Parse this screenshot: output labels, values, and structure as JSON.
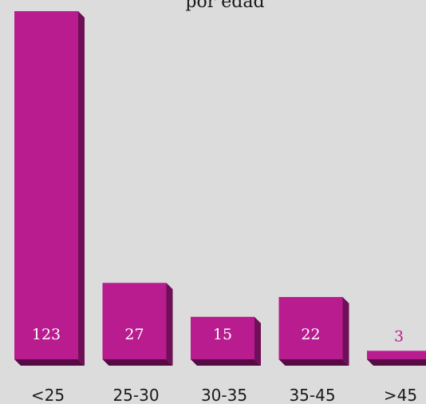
{
  "chart_data": {
    "type": "bar",
    "title": "por edad",
    "categories": [
      "<25",
      "25-30",
      "30-35",
      "35-45",
      ">45"
    ],
    "values": [
      123,
      27,
      15,
      22,
      3
    ],
    "ylim": [
      0,
      123
    ],
    "grid": false,
    "legend": "none",
    "colors": {
      "bar_front": "#b81c8f",
      "bar_side": "#6e0f57",
      "bar_bottom": "#560b44",
      "label_inside": "#ffffff",
      "label_outside": "#b81c8f",
      "background": "#dcdcdc"
    }
  }
}
